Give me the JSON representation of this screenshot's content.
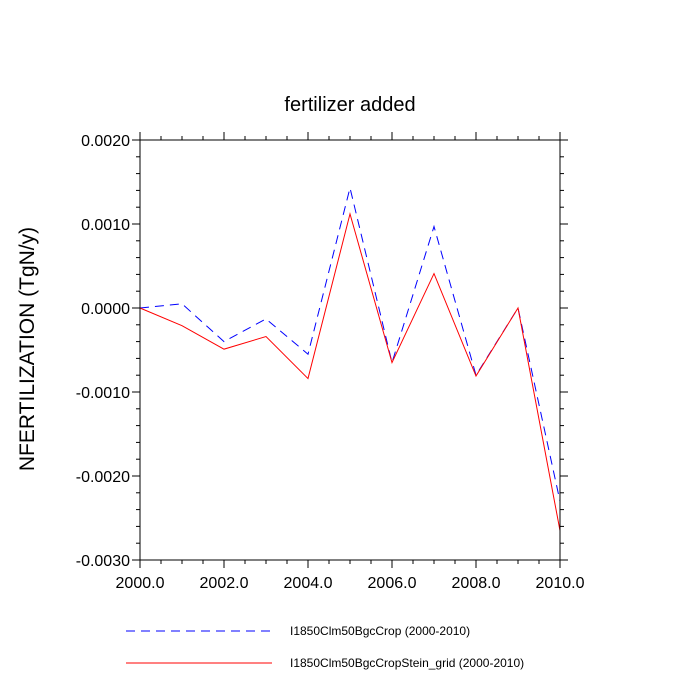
{
  "chart_data": {
    "type": "line",
    "title": "fertilizer added",
    "xlabel": "",
    "ylabel": "NFERTILIZATION  (TgN/y)",
    "xlim": [
      2000,
      2010
    ],
    "ylim": [
      -0.003,
      0.002
    ],
    "x": [
      2000,
      2001,
      2002,
      2003,
      2004,
      2005,
      2006,
      2007,
      2008,
      2009,
      2010
    ],
    "x_ticks": [
      2000,
      2002,
      2004,
      2006,
      2008,
      2010
    ],
    "x_tick_labels": [
      "2000.0",
      "2002.0",
      "2004.0",
      "2006.0",
      "2008.0",
      "2010.0"
    ],
    "y_ticks": [
      0.002,
      0.001,
      0.0,
      -0.001,
      -0.002,
      -0.003
    ],
    "y_tick_labels": [
      "0.0020",
      "0.0010",
      "0.0000",
      "-0.0010",
      "-0.0020",
      "-0.0030"
    ],
    "grid": false,
    "legend_position": "bottom",
    "series": [
      {
        "name": "I1850Clm50BgcCrop (2000-2010)",
        "color": "#0000ff",
        "style": "dashed",
        "values": [
          0.0,
          5e-05,
          -0.0004,
          -0.00013,
          -0.00055,
          0.00143,
          -0.00065,
          0.00097,
          -0.0008,
          0.0,
          -0.0023
        ]
      },
      {
        "name": "I1850Clm50BgcCropStein_grid (2000-2010)",
        "color": "#ff0000",
        "style": "solid",
        "values": [
          0.0,
          -0.00021,
          -0.00049,
          -0.00034,
          -0.00084,
          0.00112,
          -0.00065,
          0.00041,
          -0.00081,
          0.0,
          -0.00265
        ]
      }
    ]
  }
}
